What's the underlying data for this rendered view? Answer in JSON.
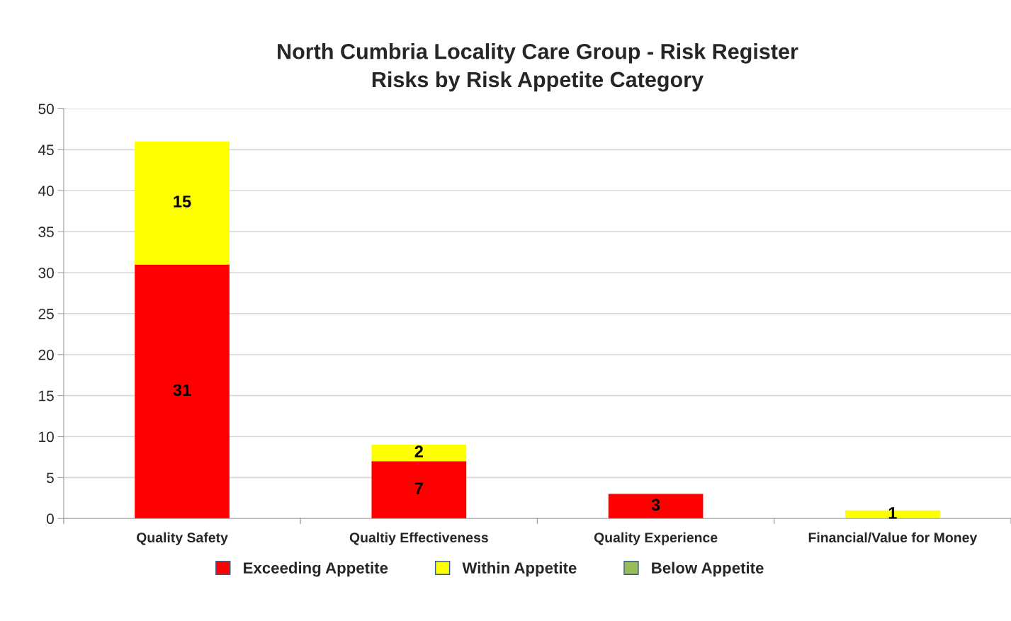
{
  "chart_data": {
    "type": "bar",
    "title": "North Cumbria Locality Care Group - Risk Register\nRisks by Risk Appetite Category",
    "categories": [
      "Quality Safety",
      "Qualtiy Effectiveness",
      "Quality Experience",
      "Financial/Value for Money"
    ],
    "stacked": true,
    "series": [
      {
        "name": "Exceeding Appetite",
        "color": "#ff0000",
        "values": [
          31,
          7,
          3,
          null
        ]
      },
      {
        "name": "Within Appetite",
        "color": "#ffff00",
        "values": [
          15,
          2,
          null,
          1
        ]
      },
      {
        "name": "Below Appetite",
        "color": "#9bbb59",
        "values": [
          null,
          null,
          null,
          null
        ]
      }
    ],
    "ylim": [
      0,
      50
    ],
    "yticks": [
      0,
      5,
      10,
      15,
      20,
      25,
      30,
      35,
      40,
      45,
      50
    ],
    "grid": "y",
    "legend": "bottom",
    "data_labels": true
  }
}
